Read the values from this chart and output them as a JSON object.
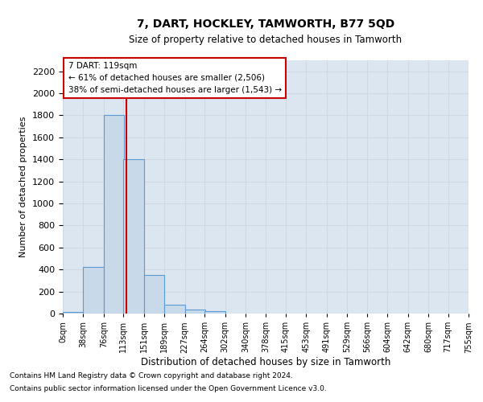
{
  "title": "7, DART, HOCKLEY, TAMWORTH, B77 5QD",
  "subtitle": "Size of property relative to detached houses in Tamworth",
  "xlabel": "Distribution of detached houses by size in Tamworth",
  "ylabel": "Number of detached properties",
  "footnote1": "Contains HM Land Registry data © Crown copyright and database right 2024.",
  "footnote2": "Contains public sector information licensed under the Open Government Licence v3.0.",
  "bar_left_edges": [
    0,
    38,
    76,
    113,
    151,
    189,
    227,
    264,
    302,
    340,
    378,
    415,
    453,
    491,
    529,
    566,
    604,
    642,
    680,
    717
  ],
  "bar_heights": [
    15,
    420,
    1800,
    1400,
    350,
    80,
    35,
    20,
    0,
    0,
    0,
    0,
    0,
    0,
    0,
    0,
    0,
    0,
    0,
    0
  ],
  "bin_width": 38,
  "bar_color": "#c8d9ea",
  "bar_edge_color": "#5b9bd5",
  "grid_color": "#d0d8e4",
  "bg_color": "#dce6f1",
  "property_value": 119,
  "red_line_color": "#cc0000",
  "annotation_line1": "7 DART: 119sqm",
  "annotation_line2": "← 61% of detached houses are smaller (2,506)",
  "annotation_line3": "38% of semi-detached houses are larger (1,543) →",
  "annotation_box_color": "#ffffff",
  "annotation_box_edge": "#cc0000",
  "ylim": [
    0,
    2300
  ],
  "yticks": [
    0,
    200,
    400,
    600,
    800,
    1000,
    1200,
    1400,
    1600,
    1800,
    2000,
    2200
  ],
  "tick_labels": [
    "0sqm",
    "38sqm",
    "76sqm",
    "113sqm",
    "151sqm",
    "189sqm",
    "227sqm",
    "264sqm",
    "302sqm",
    "340sqm",
    "378sqm",
    "415sqm",
    "453sqm",
    "491sqm",
    "529sqm",
    "566sqm",
    "604sqm",
    "642sqm",
    "680sqm",
    "717sqm",
    "755sqm"
  ],
  "xlim_max": 755
}
